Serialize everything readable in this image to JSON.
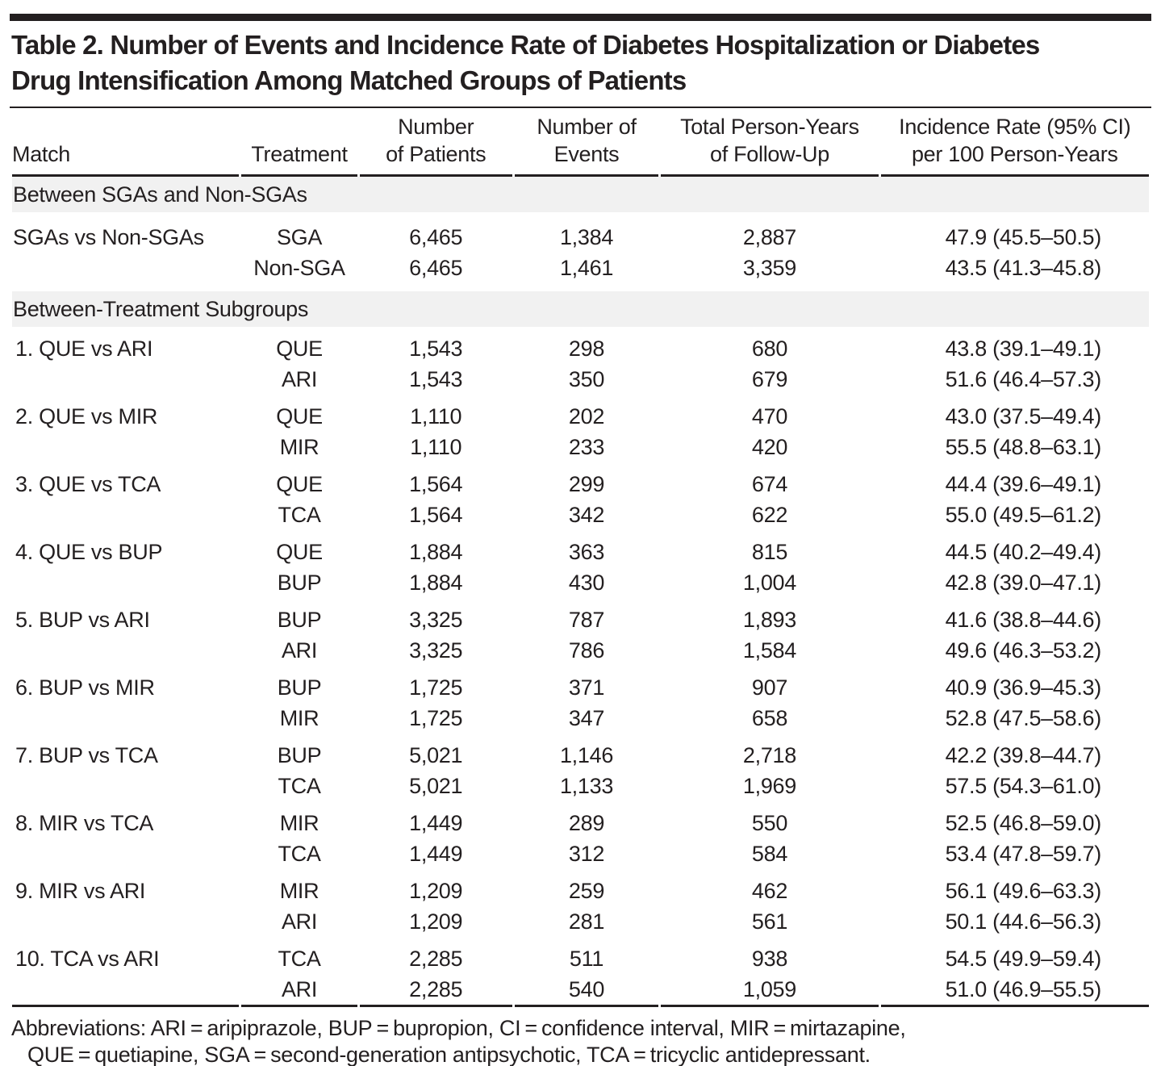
{
  "colors": {
    "text": "#231f20",
    "rule": "#231f20",
    "section_band": "#f1f1f1",
    "background": "#ffffff"
  },
  "title": {
    "line1": "Table 2. Number of Events and Incidence Rate of Diabetes Hospitalization or Diabetes",
    "line2": "Drug Intensification Among Matched Groups of Patients"
  },
  "table": {
    "columns": [
      {
        "line1": "",
        "line2": "Match"
      },
      {
        "line1": "",
        "line2": "Treatment"
      },
      {
        "line1": "Number",
        "line2": "of Patients"
      },
      {
        "line1": "Number of",
        "line2": "Events"
      },
      {
        "line1": "Total Person-Years",
        "line2": "of Follow-Up"
      },
      {
        "line1": "Incidence Rate (95% CI)",
        "line2": "per 100 Person-Years"
      }
    ],
    "sections": [
      {
        "header": "Between SGAs and Non-SGAs",
        "groups": [
          {
            "match": "SGAs vs Non-SGAs",
            "rows": [
              {
                "treatment": "SGA",
                "patients": "6,465",
                "events": "1,384",
                "person_years": "2,887",
                "incidence_rate": "47.9 (45.5–50.5)"
              },
              {
                "treatment": "Non-SGA",
                "patients": "6,465",
                "events": "1,461",
                "person_years": "3,359",
                "incidence_rate": "43.5 (41.3–45.8)"
              }
            ]
          }
        ]
      },
      {
        "header": "Between-Treatment Subgroups",
        "groups": [
          {
            "match": "1. QUE vs ARI",
            "rows": [
              {
                "treatment": "QUE",
                "patients": "1,543",
                "events": "298",
                "person_years": "680",
                "incidence_rate": "43.8 (39.1–49.1)"
              },
              {
                "treatment": "ARI",
                "patients": "1,543",
                "events": "350",
                "person_years": "679",
                "incidence_rate": "51.6 (46.4–57.3)"
              }
            ]
          },
          {
            "match": "2. QUE vs MIR",
            "rows": [
              {
                "treatment": "QUE",
                "patients": "1,110",
                "events": "202",
                "person_years": "470",
                "incidence_rate": "43.0 (37.5–49.4)"
              },
              {
                "treatment": "MIR",
                "patients": "1,110",
                "events": "233",
                "person_years": "420",
                "incidence_rate": "55.5 (48.8–63.1)"
              }
            ]
          },
          {
            "match": "3. QUE vs TCA",
            "rows": [
              {
                "treatment": "QUE",
                "patients": "1,564",
                "events": "299",
                "person_years": "674",
                "incidence_rate": "44.4 (39.6–49.1)"
              },
              {
                "treatment": "TCA",
                "patients": "1,564",
                "events": "342",
                "person_years": "622",
                "incidence_rate": "55.0 (49.5–61.2)"
              }
            ]
          },
          {
            "match": "4. QUE vs BUP",
            "rows": [
              {
                "treatment": "QUE",
                "patients": "1,884",
                "events": "363",
                "person_years": "815",
                "incidence_rate": "44.5 (40.2–49.4)"
              },
              {
                "treatment": "BUP",
                "patients": "1,884",
                "events": "430",
                "person_years": "1,004",
                "incidence_rate": "42.8 (39.0–47.1)"
              }
            ]
          },
          {
            "match": "5. BUP vs ARI",
            "rows": [
              {
                "treatment": "BUP",
                "patients": "3,325",
                "events": "787",
                "person_years": "1,893",
                "incidence_rate": "41.6 (38.8–44.6)"
              },
              {
                "treatment": "ARI",
                "patients": "3,325",
                "events": "786",
                "person_years": "1,584",
                "incidence_rate": "49.6 (46.3–53.2)"
              }
            ]
          },
          {
            "match": "6. BUP vs MIR",
            "rows": [
              {
                "treatment": "BUP",
                "patients": "1,725",
                "events": "371",
                "person_years": "907",
                "incidence_rate": "40.9 (36.9–45.3)"
              },
              {
                "treatment": "MIR",
                "patients": "1,725",
                "events": "347",
                "person_years": "658",
                "incidence_rate": "52.8 (47.5–58.6)"
              }
            ]
          },
          {
            "match": "7. BUP vs TCA",
            "rows": [
              {
                "treatment": "BUP",
                "patients": "5,021",
                "events": "1,146",
                "person_years": "2,718",
                "incidence_rate": "42.2 (39.8–44.7)"
              },
              {
                "treatment": "TCA",
                "patients": "5,021",
                "events": "1,133",
                "person_years": "1,969",
                "incidence_rate": "57.5 (54.3–61.0)"
              }
            ]
          },
          {
            "match": "8. MIR vs TCA",
            "rows": [
              {
                "treatment": "MIR",
                "patients": "1,449",
                "events": "289",
                "person_years": "550",
                "incidence_rate": "52.5 (46.8–59.0)"
              },
              {
                "treatment": "TCA",
                "patients": "1,449",
                "events": "312",
                "person_years": "584",
                "incidence_rate": "53.4 (47.8–59.7)"
              }
            ]
          },
          {
            "match": "9. MIR vs ARI",
            "rows": [
              {
                "treatment": "MIR",
                "patients": "1,209",
                "events": "259",
                "person_years": "462",
                "incidence_rate": "56.1 (49.6–63.3)"
              },
              {
                "treatment": "ARI",
                "patients": "1,209",
                "events": "281",
                "person_years": "561",
                "incidence_rate": "50.1 (44.6–56.3)"
              }
            ]
          },
          {
            "match": "10. TCA vs ARI",
            "rows": [
              {
                "treatment": "TCA",
                "patients": "2,285",
                "events": "511",
                "person_years": "938",
                "incidence_rate": "54.5 (49.9–59.4)"
              },
              {
                "treatment": "ARI",
                "patients": "2,285",
                "events": "540",
                "person_years": "1,059",
                "incidence_rate": "51.0 (46.9–55.5)"
              }
            ]
          }
        ]
      }
    ]
  },
  "footnote": {
    "line1": "Abbreviations: ARI = aripiprazole, BUP = bupropion, CI = confidence interval, MIR = mirtazapine,",
    "line2": "QUE = quetiapine, SGA = second-generation antipsychotic, TCA = tricyclic antidepressant."
  }
}
